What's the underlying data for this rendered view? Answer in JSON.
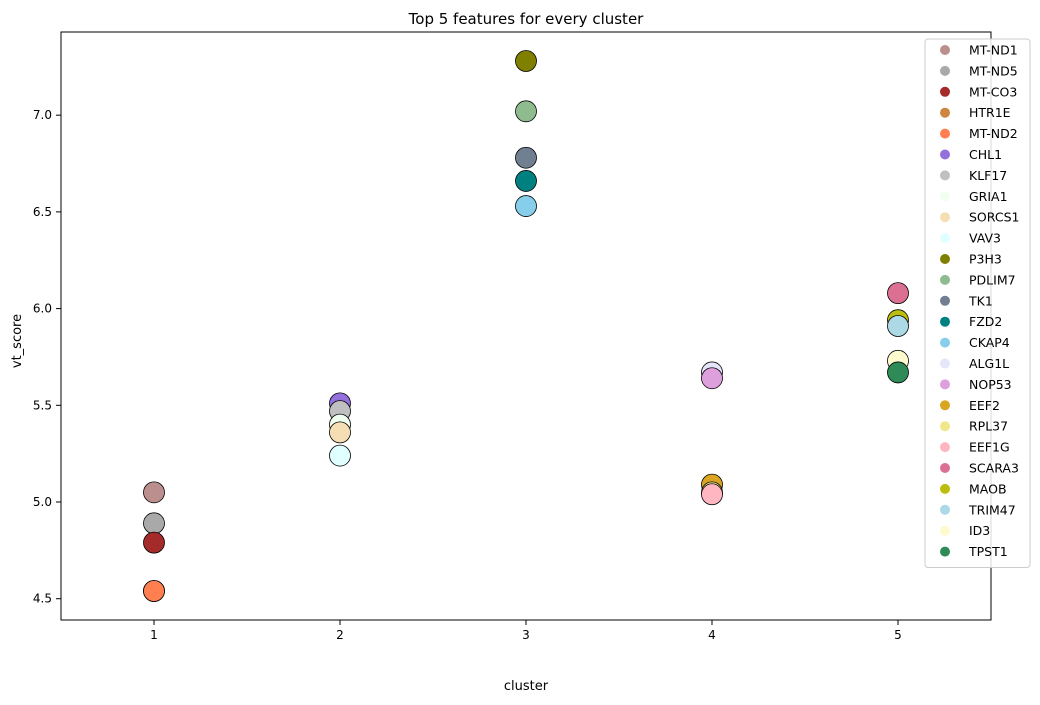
{
  "chart_data": {
    "type": "scatter",
    "title": "Top 5 features for every cluster",
    "xlabel": "cluster",
    "ylabel": "vt_score",
    "xlim": [
      0.5,
      5.5
    ],
    "ylim": [
      4.39,
      7.43
    ],
    "xticks": [
      1,
      2,
      3,
      4,
      5
    ],
    "yticks": [
      4.5,
      5.0,
      5.5,
      6.0,
      6.5,
      7.0
    ],
    "ytick_labels": [
      "4.5",
      "5.0",
      "5.5",
      "6.0",
      "6.5",
      "7.0"
    ],
    "grid": false,
    "legend_position": "top-right",
    "series": [
      {
        "name": "MT-ND1",
        "color": "#bc8f8f",
        "x": 1,
        "y": 5.05
      },
      {
        "name": "MT-ND5",
        "color": "#a9a9a9",
        "x": 1,
        "y": 4.89
      },
      {
        "name": "MT-CO3",
        "color": "#a52a2a",
        "x": 1,
        "y": 4.79
      },
      {
        "name": "HTR1E",
        "color": "#cd853f",
        "x": 1,
        "y": 4.54
      },
      {
        "name": "MT-ND2",
        "color": "#ff7f50",
        "x": 1,
        "y": 4.54
      },
      {
        "name": "CHL1",
        "color": "#9370db",
        "x": 2,
        "y": 5.51
      },
      {
        "name": "KLF17",
        "color": "#c0c0c0",
        "x": 2,
        "y": 5.47
      },
      {
        "name": "GRIA1",
        "color": "#f0fff0",
        "x": 2,
        "y": 5.4
      },
      {
        "name": "SORCS1",
        "color": "#f5deb3",
        "x": 2,
        "y": 5.36
      },
      {
        "name": "VAV3",
        "color": "#e0ffff",
        "x": 2,
        "y": 5.24
      },
      {
        "name": "P3H3",
        "color": "#808000",
        "x": 3,
        "y": 7.28
      },
      {
        "name": "PDLIM7",
        "color": "#8fbc8f",
        "x": 3,
        "y": 7.02
      },
      {
        "name": "TK1",
        "color": "#708090",
        "x": 3,
        "y": 6.78
      },
      {
        "name": "FZD2",
        "color": "#008080",
        "x": 3,
        "y": 6.66
      },
      {
        "name": "CKAP4",
        "color": "#87ceeb",
        "x": 3,
        "y": 6.53
      },
      {
        "name": "ALG1L",
        "color": "#e6e6fa",
        "x": 4,
        "y": 5.67
      },
      {
        "name": "NOP53",
        "color": "#dda0dd",
        "x": 4,
        "y": 5.64
      },
      {
        "name": "EEF2",
        "color": "#daa520",
        "x": 4,
        "y": 5.09
      },
      {
        "name": "RPL37",
        "color": "#f0e68c",
        "x": 4,
        "y": 5.05
      },
      {
        "name": "EEF1G",
        "color": "#ffb6c1",
        "x": 4,
        "y": 5.04
      },
      {
        "name": "SCARA3",
        "color": "#db7093",
        "x": 5,
        "y": 6.08
      },
      {
        "name": "MAOB",
        "color": "#bdbd0f",
        "x": 5,
        "y": 5.94
      },
      {
        "name": "TRIM47",
        "color": "#add8e6",
        "x": 5,
        "y": 5.91
      },
      {
        "name": "ID3",
        "color": "#fffacd",
        "x": 5,
        "y": 5.73
      },
      {
        "name": "TPST1",
        "color": "#2e8b57",
        "x": 5,
        "y": 5.67
      }
    ]
  }
}
